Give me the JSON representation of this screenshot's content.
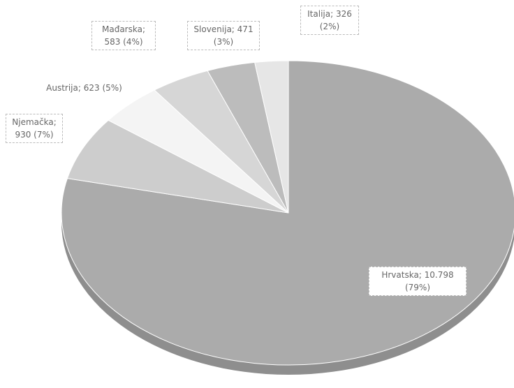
{
  "chart_data": {
    "type": "pie",
    "values": [
      10798,
      930,
      623,
      583,
      471,
      326
    ],
    "value_labels": [
      "Hrvatska; 10.798 (79%)",
      "Njemačka; 930 (7%)",
      "Austrija; 623 (5%)",
      "Mađarska; 583 (4%)",
      "Slovenija; 471 (3%)",
      "Italija; 326 (2%)"
    ],
    "colors": [
      "#ababab",
      "#cdcdcd",
      "#f4f4f4",
      "#d6d6d6",
      "#bcbcbc",
      "#e6e6e6"
    ]
  }
}
